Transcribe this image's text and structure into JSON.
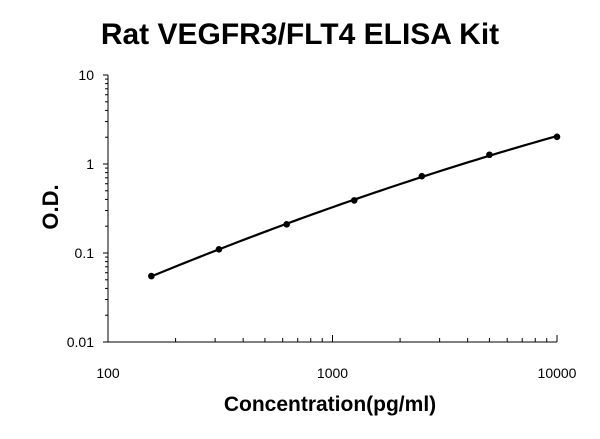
{
  "chart_data": {
    "type": "scatter",
    "title": "Rat VEGFR3/FLT4 ELISA Kit",
    "xlabel": "Concentration(pg/ml)",
    "ylabel": "O.D.",
    "x_scale": "log",
    "y_scale": "log",
    "xlim": [
      100,
      10000
    ],
    "ylim": [
      0.01,
      10
    ],
    "x_ticks": [
      "100",
      "1000",
      "10000"
    ],
    "y_ticks": [
      "10",
      "1",
      "0.1",
      "0.01"
    ],
    "grid": false,
    "legend": "none",
    "series": [
      {
        "x": [
          156,
          312,
          625,
          1250,
          2500,
          5000,
          10000
        ],
        "y": [
          0.055,
          0.11,
          0.21,
          0.39,
          0.73,
          1.27,
          2.02
        ],
        "marker": "circle",
        "line": "smooth-fit",
        "color": "#000000"
      }
    ]
  }
}
